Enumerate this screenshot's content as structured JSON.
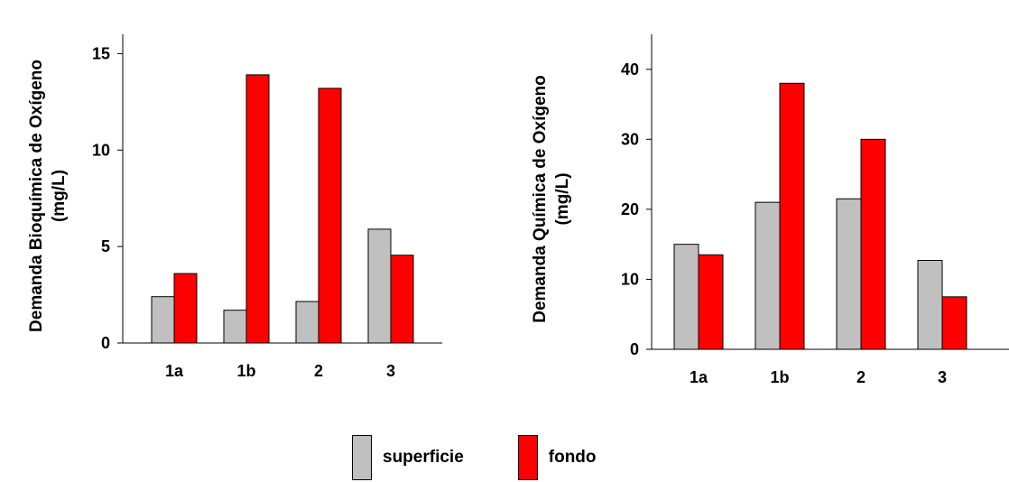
{
  "chart_data": [
    {
      "type": "bar",
      "categories": [
        "1a",
        "1b",
        "2",
        "3"
      ],
      "series": [
        {
          "name": "superficie",
          "values": [
            2.4,
            1.7,
            2.15,
            5.9
          ]
        },
        {
          "name": "fondo",
          "values": [
            3.6,
            13.9,
            13.2,
            4.55
          ]
        }
      ],
      "ylabel": [
        "Demanda Bioquímica de Oxígeno",
        "(mg/L)"
      ],
      "ylim": [
        0,
        16
      ],
      "yticks": [
        0,
        5,
        10,
        15
      ],
      "grid": false
    },
    {
      "type": "bar",
      "categories": [
        "1a",
        "1b",
        "2",
        "3"
      ],
      "series": [
        {
          "name": "superficie",
          "values": [
            15,
            21,
            21.5,
            12.7
          ]
        },
        {
          "name": "fondo",
          "values": [
            13.5,
            38,
            30,
            7.5
          ]
        }
      ],
      "ylabel": [
        "Demanda Química de Oxígeno",
        "(mg/L)"
      ],
      "ylim": [
        0,
        45
      ],
      "yticks": [
        0,
        10,
        20,
        30,
        40
      ],
      "grid": false
    }
  ],
  "legend": {
    "position": "bottom-center",
    "items": [
      {
        "label": "superficie",
        "color": "#c0c0c0"
      },
      {
        "label": "fondo",
        "color": "#ff0000"
      }
    ]
  },
  "colors": {
    "superficie": "#c0c0c0",
    "fondo": "#ff0000"
  }
}
